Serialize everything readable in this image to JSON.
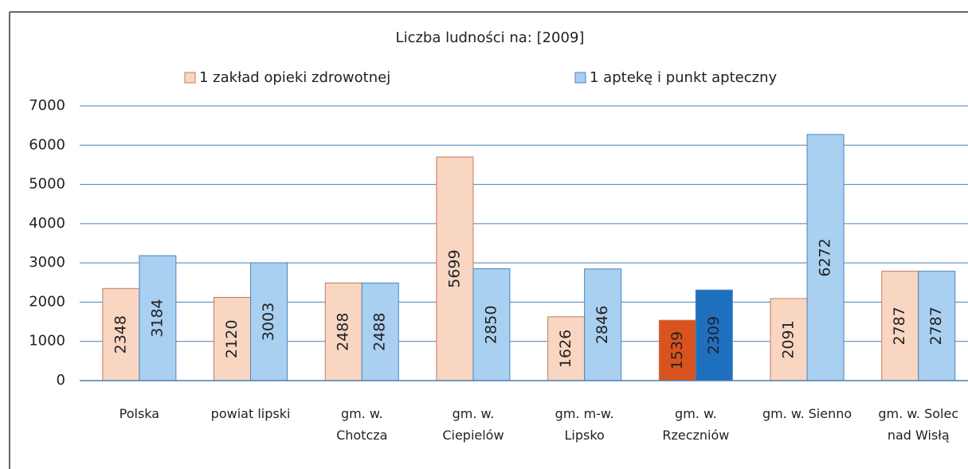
{
  "chart_data": {
    "type": "bar",
    "title": "Liczba ludności na:  [2009]",
    "categories": [
      "Polska",
      "powiat lipski",
      "gm. w.\nChotcza",
      "gm. w.\nCiepielów",
      "gm. m-w.\nLipsko",
      "gm. w.\nRzeczniów",
      "gm. w. Sienno",
      "gm. w. Solec\nnad Wisłą"
    ],
    "series": [
      {
        "name": "1 zakład opieki zdrowotnej",
        "color": "#f9d6c2",
        "edge": "#c47a5a",
        "colors": [
          "#f9d6c2",
          "#f9d6c2",
          "#f9d6c2",
          "#f9d6c2",
          "#f9d6c2",
          "#d9531e",
          "#f9d6c2",
          "#f9d6c2"
        ],
        "values": [
          2348,
          2120,
          2488,
          5699,
          1626,
          1539,
          2091,
          2787
        ]
      },
      {
        "name": "1 aptekę i punkt apteczny",
        "color": "#a9cff1",
        "edge": "#4a86c0",
        "colors": [
          "#a9cff1",
          "#a9cff1",
          "#a9cff1",
          "#a9cff1",
          "#a9cff1",
          "#1f6fbf",
          "#a9cff1",
          "#a9cff1"
        ],
        "values": [
          3184,
          3003,
          2488,
          2850,
          2846,
          2309,
          6272,
          2787
        ]
      }
    ],
    "ylim": [
      0,
      7000
    ],
    "yticks": [
      0,
      1000,
      2000,
      3000,
      4000,
      5000,
      6000,
      7000
    ],
    "grid": true
  }
}
